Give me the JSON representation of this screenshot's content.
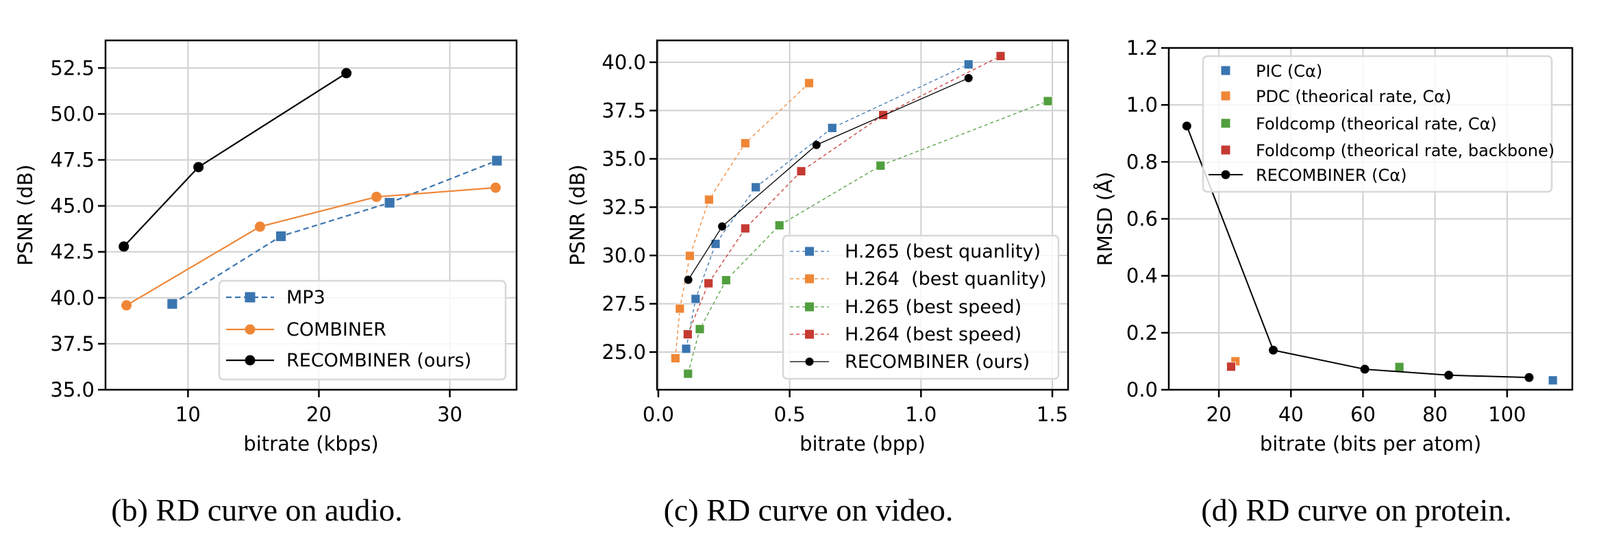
{
  "chart_data": [
    {
      "id": "audio",
      "type": "line",
      "caption": "(b) RD curve on audio.",
      "xlabel": "bitrate (kbps)",
      "ylabel": "PSNR (dB)",
      "xlim": [
        3.7,
        35.1
      ],
      "ylim": [
        35.0,
        54.0
      ],
      "xticks": [
        10,
        20,
        30
      ],
      "xtick_labels": [
        "10",
        "20",
        "30"
      ],
      "yticks": [
        35.0,
        37.5,
        40.0,
        42.5,
        45.0,
        47.5,
        50.0,
        52.5
      ],
      "ytick_labels": [
        "35.0",
        "37.5",
        "40.0",
        "42.5",
        "45.0",
        "47.5",
        "50.0",
        "52.5"
      ],
      "grid": true,
      "legend_position": "lower-right",
      "series": [
        {
          "name": "MP3",
          "color": "#3a75b0",
          "marker": "square",
          "line": "dashed",
          "x": [
            8.8,
            17.1,
            25.4,
            33.6
          ],
          "y": [
            39.67,
            43.35,
            45.17,
            47.46
          ]
        },
        {
          "name": "COMBINER",
          "color": "#ef8636",
          "marker": "circle",
          "line": "solid",
          "x": [
            5.3,
            15.5,
            24.4,
            33.5
          ],
          "y": [
            39.59,
            43.87,
            45.49,
            45.99
          ]
        },
        {
          "name": "RECOMBINER (ours)",
          "color": "#000000",
          "marker": "circle",
          "line": "solid",
          "x": [
            5.1,
            10.8,
            22.1
          ],
          "y": [
            42.79,
            47.11,
            52.22
          ]
        }
      ]
    },
    {
      "id": "video",
      "type": "line",
      "caption": "(c) RD curve on video.",
      "xlabel": "bitrate (bpp)",
      "ylabel": "PSNR (dB)",
      "xlim": [
        -0.005,
        1.56
      ],
      "ylim": [
        23.05,
        41.13
      ],
      "xticks": [
        0.0,
        0.5,
        1.0,
        1.5
      ],
      "xtick_labels": [
        "0.0",
        "0.5",
        "1.0",
        "1.5"
      ],
      "yticks": [
        25.0,
        27.5,
        30.0,
        32.5,
        35.0,
        37.5,
        40.0
      ],
      "ytick_labels": [
        "25.0",
        "27.5",
        "30.0",
        "32.5",
        "35.0",
        "37.5",
        "40.0"
      ],
      "grid": true,
      "legend_position": "lower-right",
      "series": [
        {
          "name": "H.265 (best quanlity)",
          "color": "#3a75b0",
          "marker": "square",
          "line": "dashed",
          "x": [
            0.106,
            0.142,
            0.218,
            0.371,
            0.662,
            1.181
          ],
          "y": [
            25.17,
            27.75,
            30.6,
            33.53,
            36.6,
            39.89
          ]
        },
        {
          "name": "H.264  (best quanlity)",
          "color": "#ef8636",
          "marker": "square",
          "line": "dashed",
          "x": [
            0.065,
            0.082,
            0.12,
            0.193,
            0.331,
            0.574
          ],
          "y": [
            24.68,
            27.25,
            29.98,
            32.89,
            35.81,
            38.92
          ]
        },
        {
          "name": "H.265 (best speed)",
          "color": "#519e3e",
          "marker": "square",
          "line": "dashed",
          "x": [
            0.113,
            0.158,
            0.258,
            0.461,
            0.846,
            1.483
          ],
          "y": [
            23.88,
            26.19,
            28.72,
            31.56,
            34.65,
            37.99
          ]
        },
        {
          "name": "H.264 (best speed)",
          "color": "#c53a32",
          "marker": "square",
          "line": "dashed",
          "x": [
            0.112,
            0.191,
            0.331,
            0.544,
            0.856,
            1.303
          ],
          "y": [
            25.92,
            28.56,
            31.4,
            34.36,
            37.27,
            40.32
          ]
        },
        {
          "name": "RECOMBINER (ours)",
          "color": "#000000",
          "marker": "circle",
          "line": "solid",
          "x": [
            0.114,
            0.243,
            0.602,
            1.181
          ],
          "y": [
            28.74,
            31.5,
            35.72,
            39.18
          ]
        }
      ]
    },
    {
      "id": "protein",
      "type": "scatter",
      "caption": "(d) RD curve on protein.",
      "xlabel": "bitrate (bits per atom)",
      "ylabel": "RMSD (Å)",
      "xlim": [
        6.1,
        118.1
      ],
      "ylim": [
        0.0,
        1.2
      ],
      "xticks": [
        20,
        40,
        60,
        80,
        100
      ],
      "xtick_labels": [
        "20",
        "40",
        "60",
        "80",
        "100"
      ],
      "yticks": [
        0.0,
        0.2,
        0.4,
        0.6,
        0.8,
        1.0,
        1.2
      ],
      "ytick_labels": [
        "0.0",
        "0.2",
        "0.4",
        "0.6",
        "0.8",
        "1.0",
        "1.2"
      ],
      "grid": true,
      "legend_position": "upper-right",
      "series": [
        {
          "name": "PIC (Cα)",
          "color": "#3a75b0",
          "marker": "square",
          "line": "none",
          "x": [
            112.7
          ],
          "y": [
            0.033
          ]
        },
        {
          "name": "PDC (theorical rate, Cα)",
          "color": "#ef8636",
          "marker": "square",
          "line": "none",
          "x": [
            24.6
          ],
          "y": [
            0.1
          ]
        },
        {
          "name": "Foldcomp (theorical rate, Cα)",
          "color": "#519e3e",
          "marker": "square",
          "line": "none",
          "x": [
            70.1
          ],
          "y": [
            0.08
          ]
        },
        {
          "name": "Foldcomp (theorical rate, backbone)",
          "color": "#c53a32",
          "marker": "square",
          "line": "none",
          "x": [
            23.4
          ],
          "y": [
            0.081
          ]
        },
        {
          "name": "RECOMBINER (Cα)",
          "color": "#000000",
          "marker": "circle",
          "line": "solid",
          "x": [
            11.1,
            35.1,
            60.5,
            83.8,
            106.1
          ],
          "y": [
            0.926,
            0.139,
            0.072,
            0.051,
            0.043
          ]
        }
      ]
    }
  ]
}
